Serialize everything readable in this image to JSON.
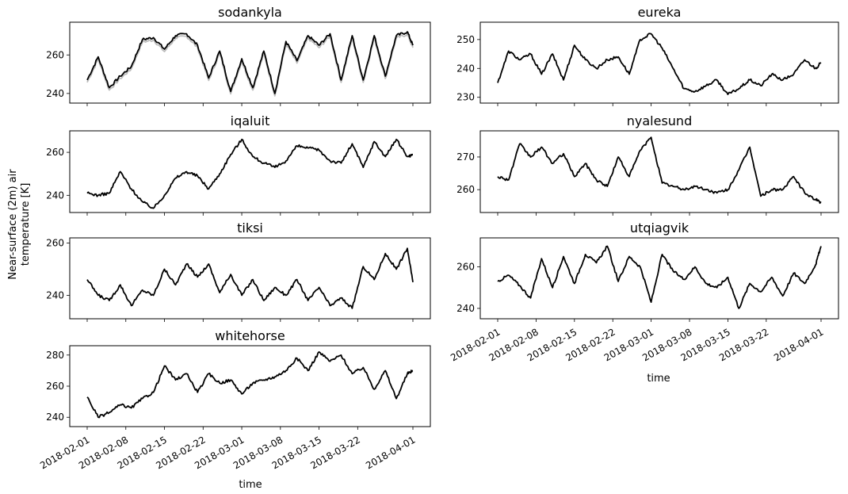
{
  "figure": {
    "ylabel_line1": "Near-surface (2m) air",
    "ylabel_line2": "temperature [K]",
    "xlabel": "time"
  },
  "chart_data": [
    {
      "type": "line",
      "title": "sodankyla",
      "x_range": [
        "2018-02-01",
        "2018-04-01"
      ],
      "ylim": [
        235,
        277
      ],
      "yticks": [
        240,
        260
      ],
      "secondary_series_color": "#bdbdbd",
      "series": [
        {
          "x": [
            "2018-02-01",
            "2018-02-03",
            "2018-02-05",
            "2018-02-07",
            "2018-02-09",
            "2018-02-11",
            "2018-02-13",
            "2018-02-15",
            "2018-02-17",
            "2018-02-19",
            "2018-02-21",
            "2018-02-23",
            "2018-02-25",
            "2018-02-27",
            "2018-03-01",
            "2018-03-03",
            "2018-03-05",
            "2018-03-07",
            "2018-03-09",
            "2018-03-11",
            "2018-03-13",
            "2018-03-15",
            "2018-03-17",
            "2018-03-19",
            "2018-03-21",
            "2018-03-23",
            "2018-03-25",
            "2018-03-27",
            "2018-03-29",
            "2018-03-31",
            "2018-04-01"
          ],
          "y": [
            247,
            259,
            243,
            249,
            254,
            268,
            269,
            263,
            270,
            271,
            265,
            248,
            262,
            241,
            258,
            243,
            262,
            240,
            267,
            257,
            270,
            265,
            271,
            247,
            270,
            247,
            270,
            249,
            270,
            272,
            265
          ]
        }
      ]
    },
    {
      "type": "line",
      "title": "eureka",
      "x_range": [
        "2018-02-01",
        "2018-04-01"
      ],
      "ylim": [
        228,
        256
      ],
      "yticks": [
        230,
        240,
        250
      ],
      "series": [
        {
          "x": [
            "2018-02-01",
            "2018-02-03",
            "2018-02-05",
            "2018-02-07",
            "2018-02-09",
            "2018-02-11",
            "2018-02-13",
            "2018-02-15",
            "2018-02-17",
            "2018-02-19",
            "2018-02-21",
            "2018-02-23",
            "2018-02-25",
            "2018-02-27",
            "2018-03-01",
            "2018-03-03",
            "2018-03-05",
            "2018-03-07",
            "2018-03-09",
            "2018-03-11",
            "2018-03-13",
            "2018-03-15",
            "2018-03-17",
            "2018-03-19",
            "2018-03-21",
            "2018-03-23",
            "2018-03-25",
            "2018-03-27",
            "2018-03-29",
            "2018-03-31",
            "2018-04-01"
          ],
          "y": [
            235,
            246,
            243,
            245,
            238,
            245,
            236,
            248,
            243,
            240,
            243,
            244,
            238,
            250,
            252,
            247,
            240,
            233,
            232,
            234,
            236,
            231,
            233,
            236,
            234,
            238,
            236,
            238,
            243,
            240,
            242
          ]
        }
      ]
    },
    {
      "type": "line",
      "title": "iqaluit",
      "x_range": [
        "2018-02-01",
        "2018-04-01"
      ],
      "ylim": [
        232,
        270
      ],
      "yticks": [
        240,
        260
      ],
      "series": [
        {
          "x": [
            "2018-02-01",
            "2018-02-03",
            "2018-02-05",
            "2018-02-07",
            "2018-02-09",
            "2018-02-11",
            "2018-02-13",
            "2018-02-15",
            "2018-02-17",
            "2018-02-19",
            "2018-02-21",
            "2018-02-23",
            "2018-02-25",
            "2018-02-27",
            "2018-03-01",
            "2018-03-03",
            "2018-03-05",
            "2018-03-07",
            "2018-03-09",
            "2018-03-11",
            "2018-03-13",
            "2018-03-15",
            "2018-03-17",
            "2018-03-19",
            "2018-03-21",
            "2018-03-23",
            "2018-03-25",
            "2018-03-27",
            "2018-03-29",
            "2018-03-31",
            "2018-04-01"
          ],
          "y": [
            241,
            240,
            241,
            251,
            243,
            237,
            234,
            240,
            248,
            251,
            249,
            243,
            250,
            259,
            266,
            258,
            255,
            253,
            256,
            263,
            262,
            261,
            256,
            255,
            264,
            253,
            265,
            258,
            266,
            258,
            259
          ]
        }
      ]
    },
    {
      "type": "line",
      "title": "nyalesund",
      "x_range": [
        "2018-02-01",
        "2018-04-01"
      ],
      "ylim": [
        253,
        278
      ],
      "yticks": [
        260,
        270
      ],
      "series": [
        {
          "x": [
            "2018-02-01",
            "2018-02-03",
            "2018-02-05",
            "2018-02-07",
            "2018-02-09",
            "2018-02-11",
            "2018-02-13",
            "2018-02-15",
            "2018-02-17",
            "2018-02-19",
            "2018-02-21",
            "2018-02-23",
            "2018-02-25",
            "2018-02-27",
            "2018-03-01",
            "2018-03-03",
            "2018-03-05",
            "2018-03-07",
            "2018-03-09",
            "2018-03-11",
            "2018-03-13",
            "2018-03-15",
            "2018-03-17",
            "2018-03-19",
            "2018-03-21",
            "2018-03-23",
            "2018-03-25",
            "2018-03-27",
            "2018-03-29",
            "2018-03-31",
            "2018-04-01"
          ],
          "y": [
            264,
            263,
            274,
            270,
            273,
            268,
            271,
            264,
            268,
            263,
            261,
            270,
            264,
            272,
            276,
            262,
            261,
            260,
            261,
            260,
            259,
            260,
            266,
            273,
            258,
            260,
            260,
            264,
            259,
            257,
            256
          ]
        }
      ]
    },
    {
      "type": "line",
      "title": "tiksi",
      "x_range": [
        "2018-02-01",
        "2018-04-01"
      ],
      "ylim": [
        231,
        262
      ],
      "yticks": [
        240,
        260
      ],
      "series": [
        {
          "x": [
            "2018-02-01",
            "2018-02-03",
            "2018-02-05",
            "2018-02-07",
            "2018-02-09",
            "2018-02-11",
            "2018-02-13",
            "2018-02-15",
            "2018-02-17",
            "2018-02-19",
            "2018-02-21",
            "2018-02-23",
            "2018-02-25",
            "2018-02-27",
            "2018-03-01",
            "2018-03-03",
            "2018-03-05",
            "2018-03-07",
            "2018-03-09",
            "2018-03-11",
            "2018-03-13",
            "2018-03-15",
            "2018-03-17",
            "2018-03-19",
            "2018-03-21",
            "2018-03-23",
            "2018-03-25",
            "2018-03-27",
            "2018-03-29",
            "2018-03-31",
            "2018-04-01"
          ],
          "y": [
            246,
            240,
            238,
            244,
            236,
            242,
            240,
            250,
            244,
            252,
            247,
            252,
            241,
            248,
            240,
            246,
            238,
            243,
            240,
            246,
            238,
            243,
            236,
            239,
            235,
            251,
            246,
            256,
            250,
            258,
            245
          ]
        }
      ]
    },
    {
      "type": "line",
      "title": "utqiagvik",
      "x_range": [
        "2018-02-01",
        "2018-04-01"
      ],
      "ylim": [
        235,
        274
      ],
      "yticks": [
        240,
        260
      ],
      "series": [
        {
          "x": [
            "2018-02-01",
            "2018-02-03",
            "2018-02-05",
            "2018-02-07",
            "2018-02-09",
            "2018-02-11",
            "2018-02-13",
            "2018-02-15",
            "2018-02-17",
            "2018-02-19",
            "2018-02-21",
            "2018-02-23",
            "2018-02-25",
            "2018-02-27",
            "2018-03-01",
            "2018-03-03",
            "2018-03-05",
            "2018-03-07",
            "2018-03-09",
            "2018-03-11",
            "2018-03-13",
            "2018-03-15",
            "2018-03-17",
            "2018-03-19",
            "2018-03-21",
            "2018-03-23",
            "2018-03-25",
            "2018-03-27",
            "2018-03-29",
            "2018-03-31",
            "2018-04-01"
          ],
          "y": [
            253,
            256,
            251,
            245,
            264,
            250,
            265,
            252,
            266,
            262,
            270,
            253,
            265,
            260,
            243,
            266,
            258,
            254,
            260,
            252,
            250,
            255,
            240,
            252,
            248,
            255,
            246,
            257,
            252,
            261,
            270
          ]
        }
      ]
    },
    {
      "type": "line",
      "title": "whitehorse",
      "x_range": [
        "2018-02-01",
        "2018-04-01"
      ],
      "ylim": [
        234,
        286
      ],
      "yticks": [
        240,
        260,
        280
      ],
      "series": [
        {
          "x": [
            "2018-02-01",
            "2018-02-03",
            "2018-02-05",
            "2018-02-07",
            "2018-02-09",
            "2018-02-11",
            "2018-02-13",
            "2018-02-15",
            "2018-02-17",
            "2018-02-19",
            "2018-02-21",
            "2018-02-23",
            "2018-02-25",
            "2018-02-27",
            "2018-03-01",
            "2018-03-03",
            "2018-03-05",
            "2018-03-07",
            "2018-03-09",
            "2018-03-11",
            "2018-03-13",
            "2018-03-15",
            "2018-03-17",
            "2018-03-19",
            "2018-03-21",
            "2018-03-23",
            "2018-03-25",
            "2018-03-27",
            "2018-03-29",
            "2018-03-31",
            "2018-04-01"
          ],
          "y": [
            253,
            240,
            243,
            248,
            246,
            252,
            256,
            273,
            264,
            268,
            256,
            268,
            262,
            264,
            255,
            262,
            264,
            266,
            270,
            278,
            270,
            282,
            276,
            280,
            268,
            272,
            258,
            270,
            252,
            268,
            270
          ]
        }
      ]
    }
  ],
  "xticks": [
    "2018-02-01",
    "2018-02-08",
    "2018-02-15",
    "2018-02-22",
    "2018-03-01",
    "2018-03-08",
    "2018-03-15",
    "2018-03-22",
    "2018-04-01"
  ]
}
